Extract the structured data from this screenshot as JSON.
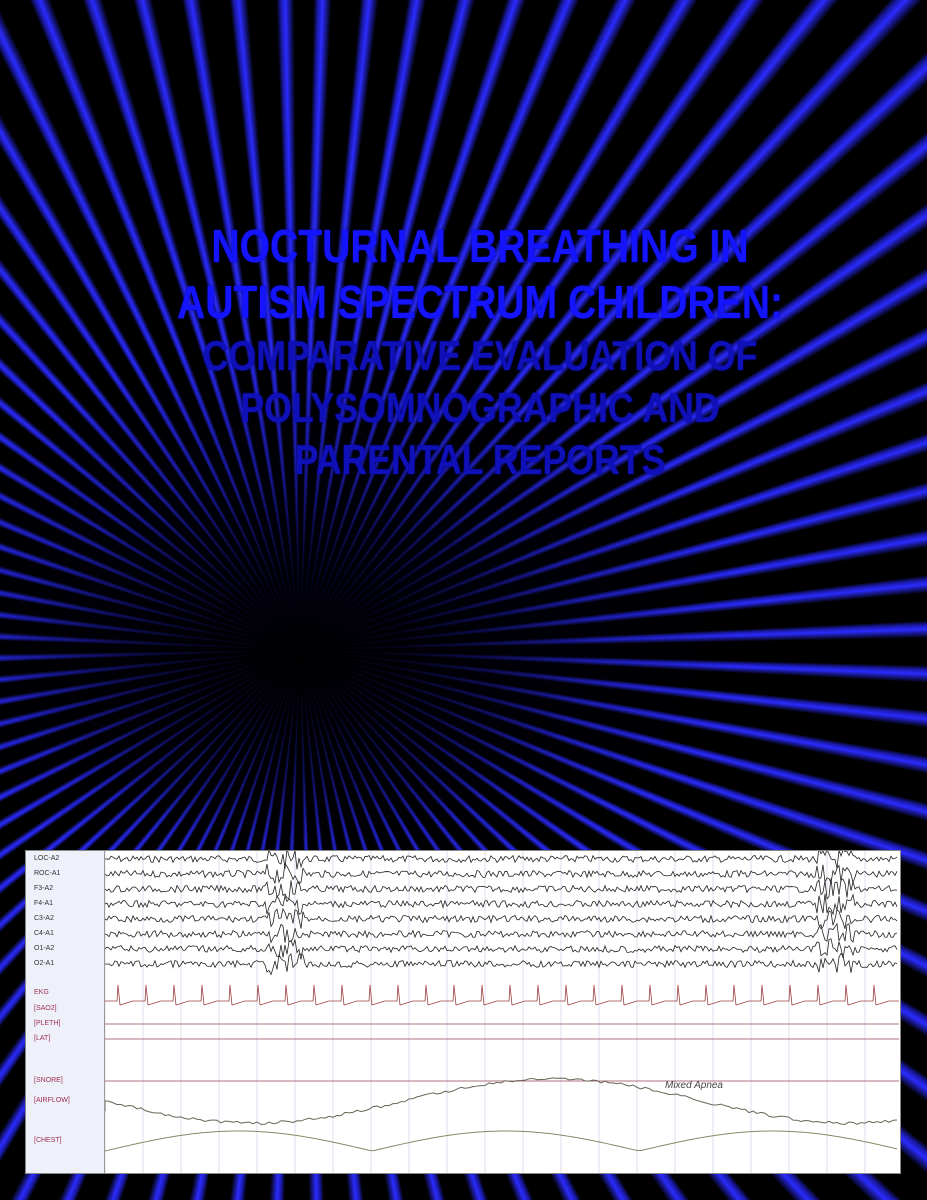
{
  "cover": {
    "title_lines": [
      "NOCTURNAL BREATHING IN",
      "AUTISM SPECTRUM CHILDREN:"
    ],
    "subtitle_lines": [
      "COMPARATIVE EVALUATION OF",
      "POLYSOMNOGRAPHIC AND PARENTAL REPORTS"
    ],
    "accent_color": "#1414ff"
  },
  "recording": {
    "channels": [
      "LOC-A2",
      "ROC-A1",
      "F3-A2",
      "F4-A1",
      "C3-A2",
      "C4-A1",
      "O1-A2",
      "O2-A1",
      "EKG",
      "[SAO2]",
      "[PLETH]",
      "[LAT]",
      "[SNORE]",
      "[AIRFLOW]",
      "[CHEST]"
    ],
    "annotation": "Mixed Apnea"
  }
}
